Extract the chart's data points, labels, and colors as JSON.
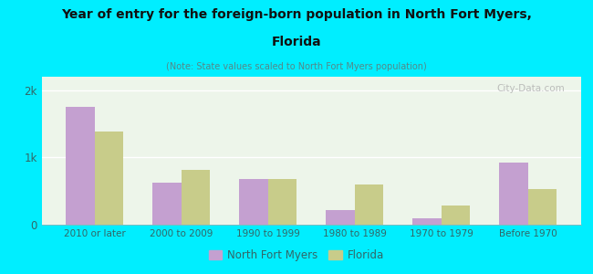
{
  "title_line1": "Year of entry for the foreign-born population in North Fort Myers,",
  "title_line2": "Florida",
  "subtitle": "(Note: State values scaled to North Fort Myers population)",
  "categories": [
    "2010 or later",
    "2000 to 2009",
    "1990 to 1999",
    "1980 to 1989",
    "1970 to 1979",
    "Before 1970"
  ],
  "north_fort_myers": [
    1750,
    620,
    680,
    220,
    90,
    920
  ],
  "florida": [
    1380,
    820,
    680,
    600,
    290,
    530
  ],
  "bar_color_nfm": "#c4a0d0",
  "bar_color_fl": "#c8cc8a",
  "background_color": "#00eeff",
  "plot_bg_top": "#e8f5e8",
  "plot_bg_bottom": "#f0f8f0",
  "title_color": "#111111",
  "subtitle_color": "#558888",
  "axis_label_color": "#336666",
  "ytick_labels": [
    "0",
    "1k",
    "2k"
  ],
  "ytick_values": [
    0,
    1000,
    2000
  ],
  "ylim": [
    0,
    2200
  ],
  "legend_nfm": "North Fort Myers",
  "legend_fl": "Florida",
  "watermark": "City-Data.com"
}
